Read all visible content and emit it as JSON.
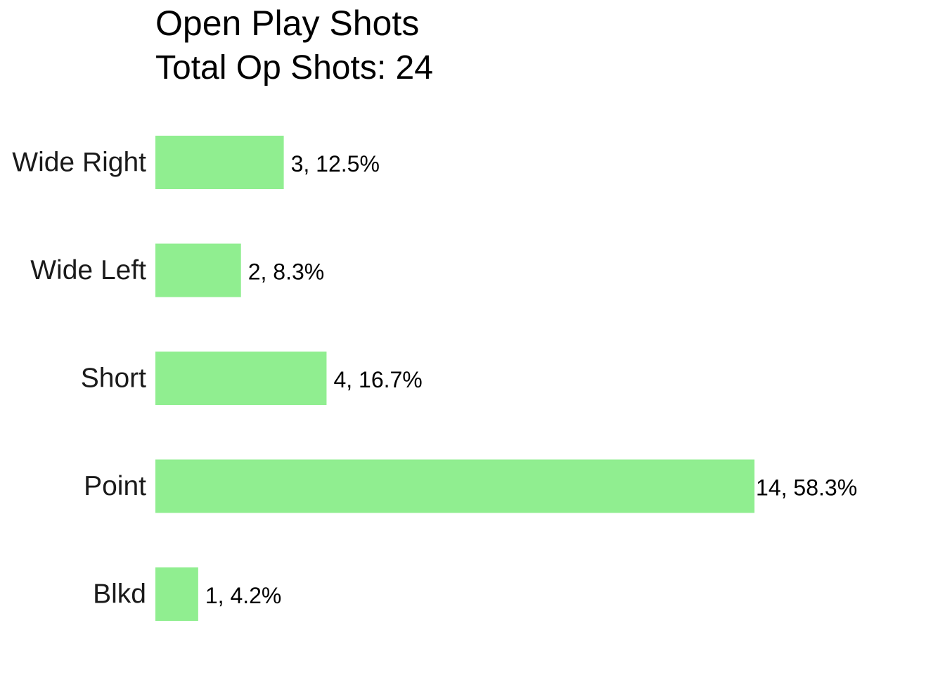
{
  "chart_data": {
    "type": "bar",
    "orientation": "horizontal",
    "title": "Open Play Shots",
    "subtitle": "Total Op Shots: 24",
    "categories": [
      "Wide Right",
      "Wide Left",
      "Short",
      "Point",
      "Blkd"
    ],
    "values": [
      3,
      2,
      4,
      14,
      1
    ],
    "data_labels": [
      "3, 12.5%",
      "2, 8.3%",
      "4, 16.7%",
      "14, 58.3%",
      "1, 4.2%"
    ],
    "xlim": [
      0,
      14
    ],
    "grid": false,
    "legend": "none",
    "bar_color": "#90ee90"
  }
}
